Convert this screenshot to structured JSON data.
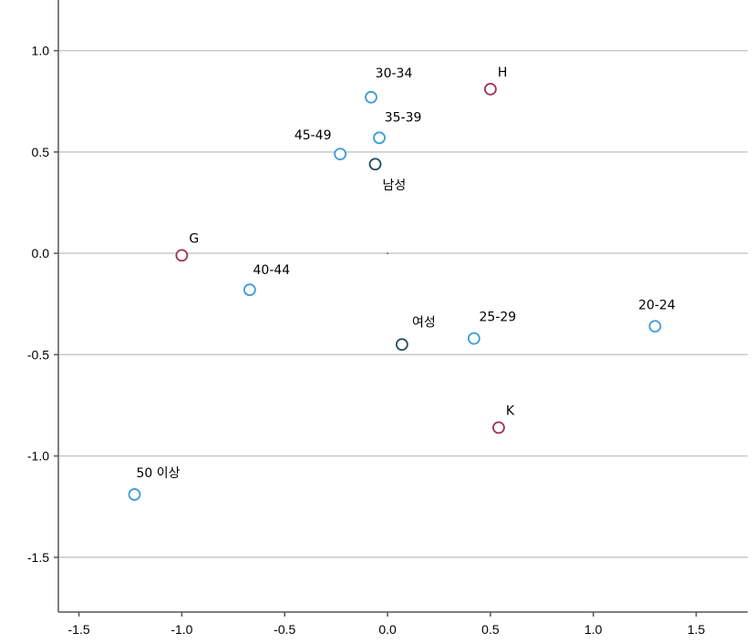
{
  "chart_data": {
    "type": "scatter",
    "title": "",
    "xlabel": "",
    "ylabel": "",
    "xlim": [
      -1.6,
      1.75
    ],
    "ylim": [
      -1.77,
      1.25
    ],
    "x_ticks": [
      -1.5,
      -1.0,
      -0.5,
      0.0,
      0.5,
      1.0,
      1.5
    ],
    "x_tick_labels": [
      "-1.5",
      "-1.0",
      "-0.5",
      "0.0",
      "0.5",
      "1.0",
      "1.5"
    ],
    "y_ticks": [
      1.0,
      0.5,
      0.0,
      -0.5,
      -1.0,
      -1.5
    ],
    "y_tick_labels": [
      "1.0",
      "0.5",
      "0.0",
      "-0.5",
      "-1.0",
      "-1.5"
    ],
    "grid": "horizontal",
    "colors": {
      "age_group": "#3d9ed6",
      "gender": "#1f4d5c",
      "group_letter": "#a0305a"
    },
    "points": [
      {
        "label": "30-34",
        "x": -0.08,
        "y": 0.77,
        "category": "age_group"
      },
      {
        "label": "35-39",
        "x": -0.04,
        "y": 0.57,
        "category": "age_group"
      },
      {
        "label": "45-49",
        "x": -0.23,
        "y": 0.49,
        "category": "age_group"
      },
      {
        "label": "남성",
        "x": -0.06,
        "y": 0.44,
        "category": "gender"
      },
      {
        "label": "H",
        "x": 0.5,
        "y": 0.81,
        "category": "group_letter"
      },
      {
        "label": "G",
        "x": -1.0,
        "y": -0.01,
        "category": "group_letter"
      },
      {
        "label": "40-44",
        "x": -0.67,
        "y": -0.18,
        "category": "age_group"
      },
      {
        "label": "여성",
        "x": 0.07,
        "y": -0.45,
        "category": "gender"
      },
      {
        "label": "25-29",
        "x": 0.42,
        "y": -0.42,
        "category": "age_group"
      },
      {
        "label": "20-24",
        "x": 1.3,
        "y": -0.36,
        "category": "age_group"
      },
      {
        "label": "K",
        "x": 0.54,
        "y": -0.86,
        "category": "group_letter"
      },
      {
        "label": "50 이상",
        "x": -1.23,
        "y": -1.19,
        "category": "age_group"
      }
    ]
  }
}
